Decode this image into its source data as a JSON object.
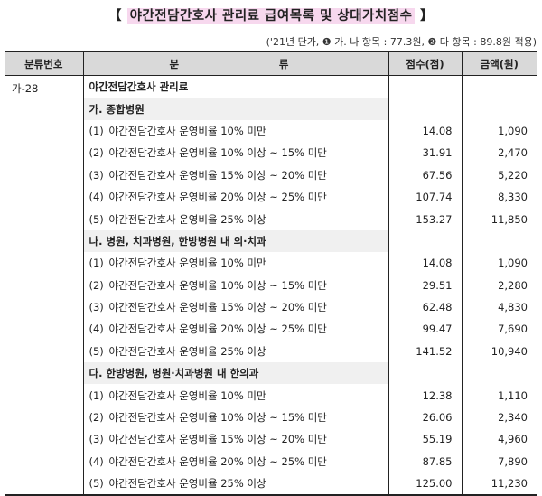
{
  "title": "【 야간전담간호사 관리료 급여목록 및 상대가치점수 】",
  "title_text": "야간전담간호사 관리료 급여목록 및 상대가치점수",
  "note": "('21년 단가, ❶ 가. 나 항목 : 77.3원, ❷ 다 항목 : 89.8원 적용)",
  "headers": {
    "code": "분류번호",
    "item_a": "분",
    "item_b": "류",
    "score": "점수(점)",
    "amount": "금액(원)"
  },
  "code": "가-28",
  "main_label": "야간전담간호사 관리료",
  "sections": [
    {
      "label": "가. 종합병원",
      "rows": [
        {
          "num": "(1)",
          "label": "야간전담간호사 운영비율 10% 미만",
          "score": "14.08",
          "amount": "1,090"
        },
        {
          "num": "(2)",
          "label": "야간전담간호사 운영비율 10% 이상 ~ 15% 미만",
          "score": "31.91",
          "amount": "2,470"
        },
        {
          "num": "(3)",
          "label": "야간전담간호사 운영비율 15% 이상 ~ 20% 미만",
          "score": "67.56",
          "amount": "5,220"
        },
        {
          "num": "(4)",
          "label": "야간전담간호사 운영비율 20% 이상 ~ 25% 미만",
          "score": "107.74",
          "amount": "8,330"
        },
        {
          "num": "(5)",
          "label": "야간전담간호사 운영비율 25% 이상",
          "score": "153.27",
          "amount": "11,850"
        }
      ]
    },
    {
      "label": "나. 병원, 치과병원, 한방병원 내 의·치과",
      "rows": [
        {
          "num": "(1)",
          "label": "야간전담간호사 운영비율 10% 미만",
          "score": "14.08",
          "amount": "1,090"
        },
        {
          "num": "(2)",
          "label": "야간전담간호사 운영비율 10% 이상 ~ 15% 미만",
          "score": "29.51",
          "amount": "2,280"
        },
        {
          "num": "(3)",
          "label": "야간전담간호사 운영비율 15% 이상 ~ 20% 미만",
          "score": "62.48",
          "amount": "4,830"
        },
        {
          "num": "(4)",
          "label": "야간전담간호사 운영비율 20% 이상 ~ 25% 미만",
          "score": "99.47",
          "amount": "7,690"
        },
        {
          "num": "(5)",
          "label": "야간전담간호사 운영비율 25% 이상",
          "score": "141.52",
          "amount": "10,940"
        }
      ]
    },
    {
      "label": "다. 한방병원, 병원·치과병원 내 한의과",
      "rows": [
        {
          "num": "(1)",
          "label": "야간전담간호사 운영비율 10% 미만",
          "score": "12.38",
          "amount": "1,110"
        },
        {
          "num": "(2)",
          "label": "야간전담간호사 운영비율 10% 이상 ~ 15% 미만",
          "score": "26.06",
          "amount": "2,340"
        },
        {
          "num": "(3)",
          "label": "야간전담간호사 운영비율 15% 이상 ~ 20% 미만",
          "score": "55.19",
          "amount": "4,960"
        },
        {
          "num": "(4)",
          "label": "야간전담간호사 운영비율 20% 이상 ~ 25% 미만",
          "score": "87.85",
          "amount": "7,890"
        },
        {
          "num": "(5)",
          "label": "야간전담간호사 운영비율 25% 이상",
          "score": "125.00",
          "amount": "11,230"
        }
      ]
    }
  ]
}
